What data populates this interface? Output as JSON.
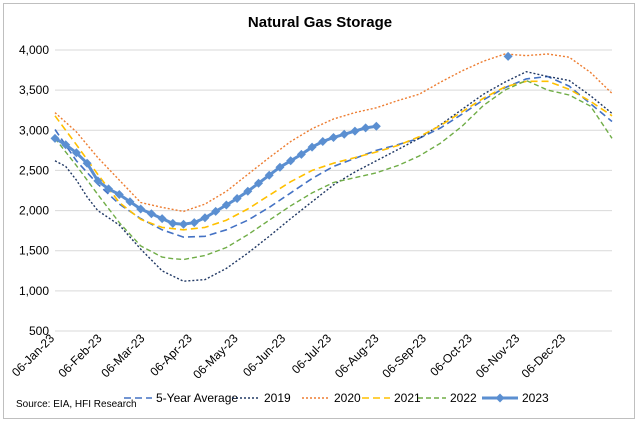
{
  "chart_data": {
    "type": "line",
    "title": "Natural Gas Storage",
    "source": "Source: EIA, HFI Research",
    "ylim": [
      500,
      4000
    ],
    "yticks": [
      "4,000",
      "3,500",
      "3,000",
      "2,500",
      "2,000",
      "1,500",
      "1,000",
      "500"
    ],
    "ytick_values": [
      4000,
      3500,
      3000,
      2500,
      2000,
      1500,
      1000,
      500
    ],
    "x_range_weeks": [
      0,
      52
    ],
    "xticks": [
      {
        "label": "06-Jan-23",
        "week": 0
      },
      {
        "label": "06-Feb-23",
        "week": 4.43
      },
      {
        "label": "06-Mar-23",
        "week": 8.43
      },
      {
        "label": "06-Apr-23",
        "week": 12.86
      },
      {
        "label": "06-May-23",
        "week": 17.14
      },
      {
        "label": "06-Jun-23",
        "week": 21.57
      },
      {
        "label": "06-Jul-23",
        "week": 25.86
      },
      {
        "label": "06-Aug-23",
        "week": 30.29
      },
      {
        "label": "06-Sep-23",
        "week": 34.71
      },
      {
        "label": "06-Oct-23",
        "week": 39.0
      },
      {
        "label": "06-Nov-23",
        "week": 43.43
      },
      {
        "label": "06-Dec-23",
        "week": 47.71
      }
    ],
    "grid": true,
    "legend_position": "bottom",
    "series": [
      {
        "name": "5-Year Average",
        "color": "#4472c4",
        "dash": "7,4",
        "width": 1.6,
        "marker": false,
        "points": [
          [
            0,
            3010
          ],
          [
            2,
            2620
          ],
          [
            4,
            2330
          ],
          [
            6,
            2080
          ],
          [
            8,
            1900
          ],
          [
            10,
            1760
          ],
          [
            12,
            1670
          ],
          [
            14,
            1680
          ],
          [
            16,
            1760
          ],
          [
            18,
            1880
          ],
          [
            20,
            2040
          ],
          [
            22,
            2220
          ],
          [
            24,
            2400
          ],
          [
            26,
            2550
          ],
          [
            28,
            2650
          ],
          [
            30,
            2750
          ],
          [
            32,
            2820
          ],
          [
            34,
            2900
          ],
          [
            36,
            3030
          ],
          [
            38,
            3200
          ],
          [
            40,
            3380
          ],
          [
            42,
            3530
          ],
          [
            44,
            3640
          ],
          [
            46,
            3670
          ],
          [
            48,
            3550
          ],
          [
            50,
            3330
          ],
          [
            52,
            3110
          ]
        ]
      },
      {
        "name": "2019",
        "color": "#203864",
        "dash": "2,2",
        "width": 1.4,
        "marker": false,
        "points": [
          [
            0,
            2620
          ],
          [
            1,
            2550
          ],
          [
            2,
            2380
          ],
          [
            3,
            2170
          ],
          [
            4,
            2000
          ],
          [
            6,
            1820
          ],
          [
            8,
            1520
          ],
          [
            10,
            1250
          ],
          [
            12,
            1120
          ],
          [
            14,
            1140
          ],
          [
            16,
            1280
          ],
          [
            18,
            1470
          ],
          [
            20,
            1680
          ],
          [
            22,
            1900
          ],
          [
            24,
            2110
          ],
          [
            26,
            2320
          ],
          [
            28,
            2480
          ],
          [
            30,
            2620
          ],
          [
            32,
            2760
          ],
          [
            34,
            2900
          ],
          [
            36,
            3070
          ],
          [
            38,
            3260
          ],
          [
            40,
            3450
          ],
          [
            42,
            3600
          ],
          [
            44,
            3730
          ],
          [
            46,
            3670
          ],
          [
            48,
            3620
          ],
          [
            50,
            3430
          ],
          [
            52,
            3210
          ]
        ]
      },
      {
        "name": "2020",
        "color": "#ed7d31",
        "dash": "2,2",
        "width": 1.4,
        "marker": false,
        "points": [
          [
            0,
            3220
          ],
          [
            2,
            2980
          ],
          [
            4,
            2660
          ],
          [
            6,
            2380
          ],
          [
            8,
            2100
          ],
          [
            10,
            2040
          ],
          [
            12,
            1990
          ],
          [
            14,
            2080
          ],
          [
            16,
            2240
          ],
          [
            18,
            2450
          ],
          [
            20,
            2660
          ],
          [
            22,
            2860
          ],
          [
            24,
            3020
          ],
          [
            26,
            3140
          ],
          [
            28,
            3220
          ],
          [
            30,
            3280
          ],
          [
            32,
            3370
          ],
          [
            34,
            3450
          ],
          [
            36,
            3600
          ],
          [
            38,
            3740
          ],
          [
            40,
            3860
          ],
          [
            42,
            3950
          ],
          [
            44,
            3930
          ],
          [
            46,
            3950
          ],
          [
            48,
            3910
          ],
          [
            50,
            3720
          ],
          [
            52,
            3460
          ]
        ]
      },
      {
        "name": "2021",
        "color": "#ffc000",
        "dash": "7,4",
        "width": 1.6,
        "marker": false,
        "points": [
          [
            0,
            3180
          ],
          [
            2,
            2820
          ],
          [
            4,
            2450
          ],
          [
            6,
            2100
          ],
          [
            8,
            1890
          ],
          [
            10,
            1790
          ],
          [
            12,
            1760
          ],
          [
            14,
            1790
          ],
          [
            16,
            1880
          ],
          [
            18,
            2020
          ],
          [
            20,
            2190
          ],
          [
            22,
            2360
          ],
          [
            24,
            2500
          ],
          [
            26,
            2590
          ],
          [
            28,
            2660
          ],
          [
            30,
            2730
          ],
          [
            32,
            2810
          ],
          [
            34,
            2920
          ],
          [
            36,
            3060
          ],
          [
            38,
            3230
          ],
          [
            40,
            3400
          ],
          [
            42,
            3540
          ],
          [
            44,
            3610
          ],
          [
            46,
            3610
          ],
          [
            48,
            3510
          ],
          [
            50,
            3360
          ],
          [
            52,
            3180
          ]
        ]
      },
      {
        "name": "2022",
        "color": "#70ad47",
        "dash": "5,3",
        "width": 1.4,
        "marker": false,
        "points": [
          [
            0,
            2900
          ],
          [
            2,
            2560
          ],
          [
            4,
            2200
          ],
          [
            6,
            1850
          ],
          [
            8,
            1560
          ],
          [
            10,
            1420
          ],
          [
            11,
            1400
          ],
          [
            12,
            1390
          ],
          [
            14,
            1440
          ],
          [
            16,
            1540
          ],
          [
            18,
            1700
          ],
          [
            20,
            1880
          ],
          [
            22,
            2060
          ],
          [
            24,
            2220
          ],
          [
            26,
            2350
          ],
          [
            28,
            2410
          ],
          [
            30,
            2470
          ],
          [
            32,
            2560
          ],
          [
            34,
            2680
          ],
          [
            36,
            2840
          ],
          [
            38,
            3050
          ],
          [
            40,
            3310
          ],
          [
            42,
            3500
          ],
          [
            44,
            3620
          ],
          [
            46,
            3500
          ],
          [
            48,
            3440
          ],
          [
            50,
            3300
          ],
          [
            52,
            2900
          ]
        ]
      },
      {
        "name": "2023",
        "color": "#5b8fd1",
        "dash": "",
        "width": 3,
        "marker": true,
        "points": [
          [
            0,
            2900
          ],
          [
            1,
            2820
          ],
          [
            2,
            2720
          ],
          [
            3,
            2590
          ],
          [
            4,
            2370
          ],
          [
            5,
            2270
          ],
          [
            6,
            2200
          ],
          [
            7,
            2110
          ],
          [
            8,
            2020
          ],
          [
            9,
            1960
          ],
          [
            10,
            1900
          ],
          [
            11,
            1840
          ],
          [
            12,
            1830
          ],
          [
            13,
            1850
          ],
          [
            14,
            1910
          ],
          [
            15,
            1990
          ],
          [
            16,
            2070
          ],
          [
            17,
            2150
          ],
          [
            18,
            2240
          ],
          [
            19,
            2340
          ],
          [
            20,
            2440
          ],
          [
            21,
            2540
          ],
          [
            22,
            2620
          ],
          [
            23,
            2700
          ],
          [
            24,
            2790
          ],
          [
            25,
            2860
          ],
          [
            26,
            2910
          ],
          [
            27,
            2950
          ],
          [
            28,
            2990
          ],
          [
            29,
            3030
          ],
          [
            30,
            3050
          ]
        ]
      }
    ],
    "extra_marker": {
      "series": "2023",
      "x": 42.3,
      "y": 3920
    }
  }
}
